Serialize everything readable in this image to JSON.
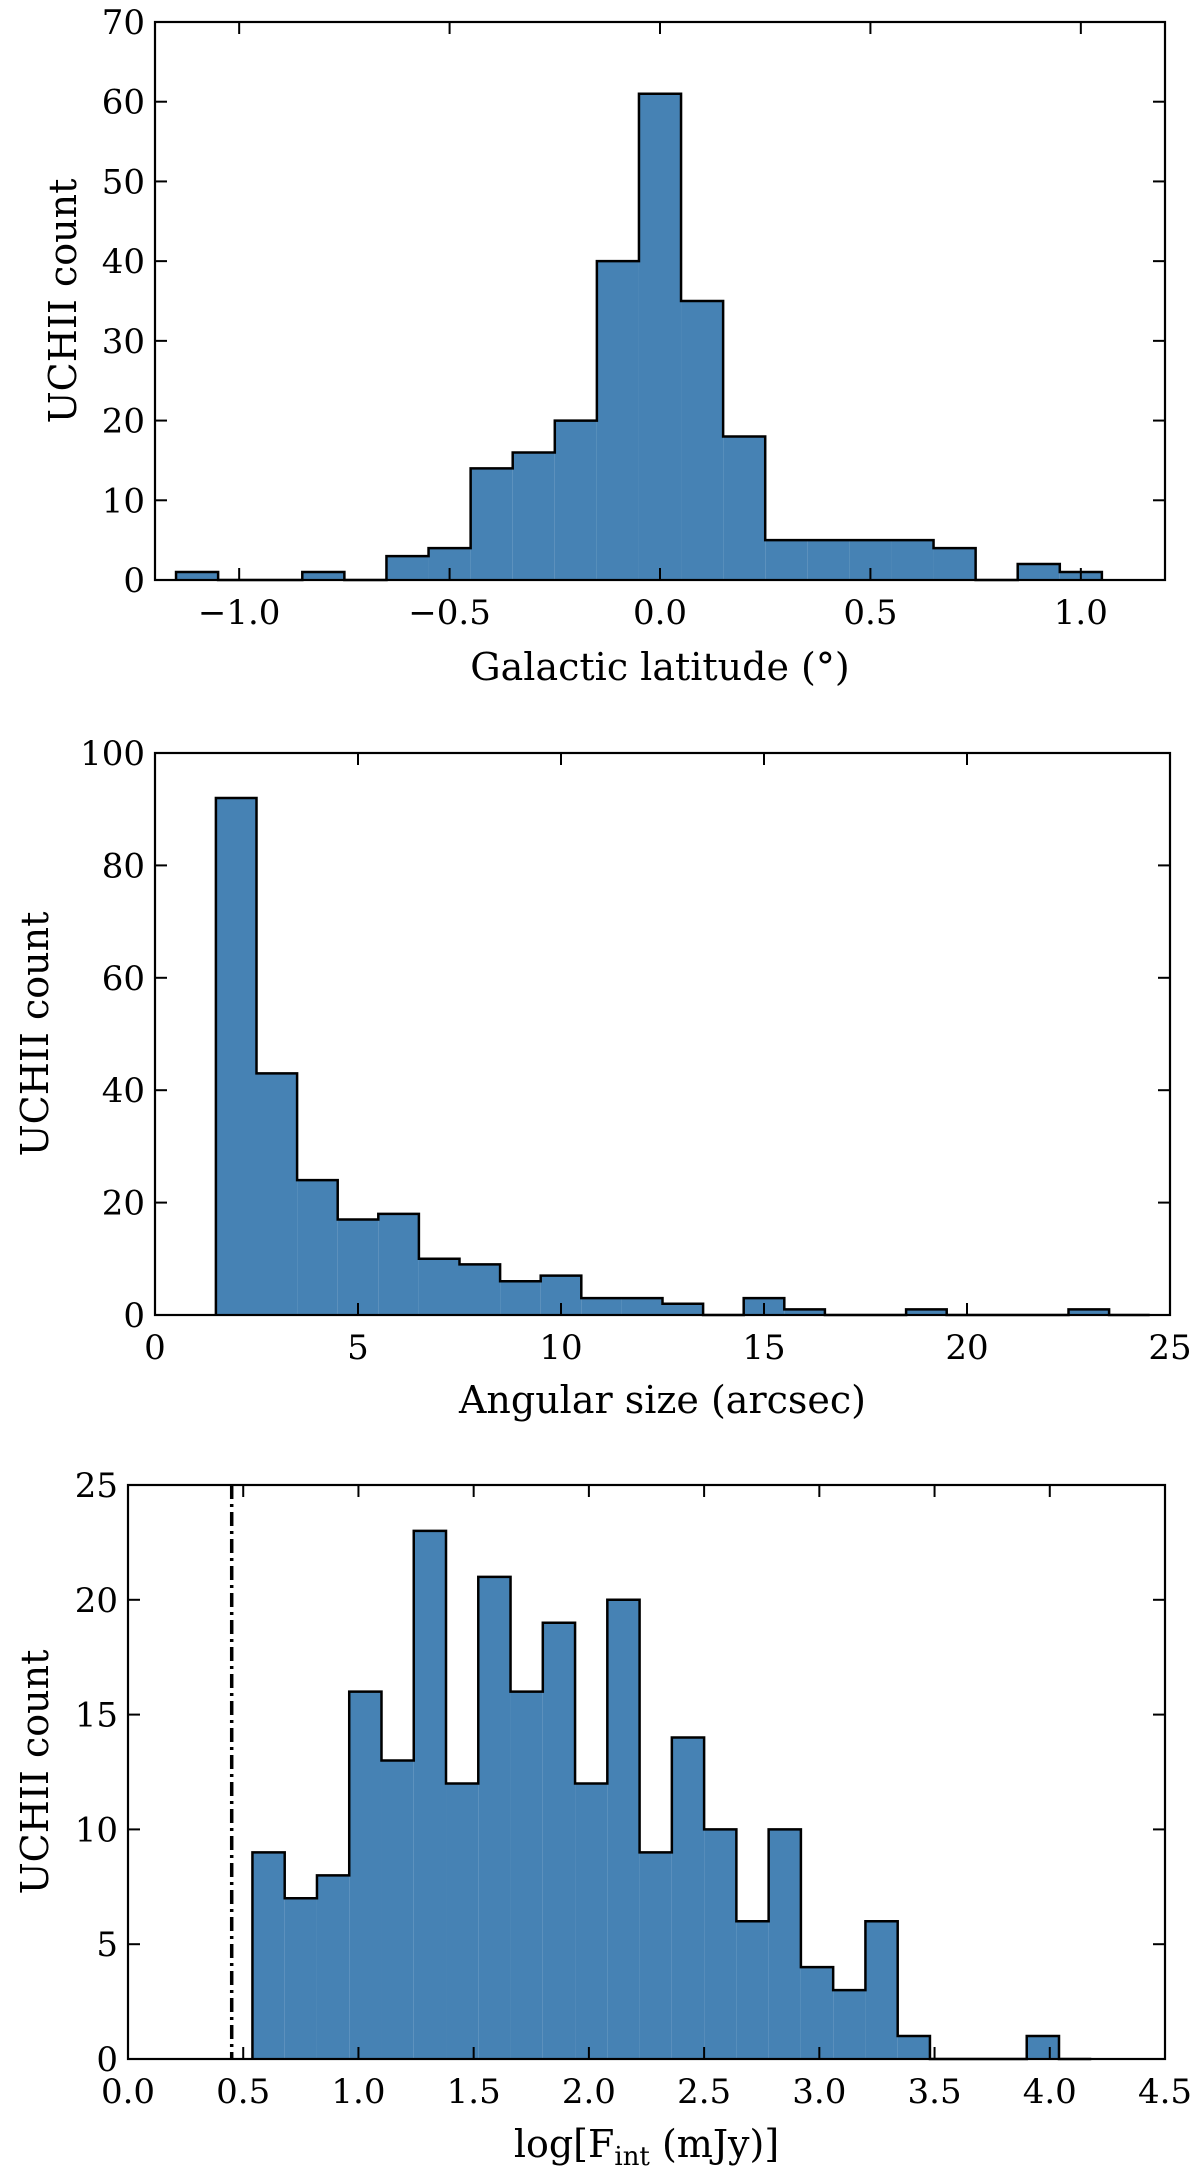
{
  "chart_data": [
    {
      "type": "bar",
      "title": "",
      "xlabel": "Galactic latitude (°)",
      "ylabel": "UCHII count",
      "xlim": [
        -1.2,
        1.2
      ],
      "ylim": [
        0,
        70
      ],
      "xticks": [
        -1.0,
        -0.5,
        0.0,
        0.5,
        1.0
      ],
      "xtick_labels": [
        "−1.0",
        "−0.5",
        "0.0",
        "0.5",
        "1.0"
      ],
      "yticks": [
        0,
        10,
        20,
        30,
        40,
        50,
        60,
        70
      ],
      "ytick_labels": [
        "0",
        "10",
        "20",
        "30",
        "40",
        "50",
        "60",
        "70"
      ],
      "bin_edges": [
        -1.15,
        -1.05,
        -0.95,
        -0.85,
        -0.75,
        -0.65,
        -0.55,
        -0.45,
        -0.35,
        -0.25,
        -0.15,
        -0.05,
        0.05,
        0.15,
        0.25,
        0.35,
        0.45,
        0.55,
        0.65,
        0.75,
        0.85,
        0.95,
        1.05
      ],
      "values": [
        1,
        0,
        0,
        1,
        0,
        3,
        4,
        14,
        16,
        20,
        40,
        61,
        35,
        18,
        5,
        5,
        5,
        5,
        4,
        0,
        2,
        1
      ],
      "color": "#4682b4"
    },
    {
      "type": "bar",
      "title": "",
      "xlabel": "Angular size (arcsec)",
      "ylabel": "UCHII count",
      "xlim": [
        0,
        25
      ],
      "ylim": [
        0,
        100
      ],
      "xticks": [
        0,
        5,
        10,
        15,
        20,
        25
      ],
      "xtick_labels": [
        "0",
        "5",
        "10",
        "15",
        "20",
        "25"
      ],
      "yticks": [
        0,
        20,
        40,
        60,
        80,
        100
      ],
      "ytick_labels": [
        "0",
        "20",
        "40",
        "60",
        "80",
        "100"
      ],
      "bin_edges": [
        1.5,
        2.5,
        3.5,
        4.5,
        5.5,
        6.5,
        7.5,
        8.5,
        9.5,
        10.5,
        11.5,
        12.5,
        13.5,
        14.5,
        15.5,
        16.5,
        17.5,
        18.5,
        19.5,
        20.5,
        21.5,
        22.5,
        23.5,
        24.5
      ],
      "values": [
        92,
        43,
        24,
        17,
        18,
        10,
        9,
        6,
        7,
        3,
        3,
        2,
        0,
        3,
        1,
        0,
        0,
        1,
        0,
        0,
        0,
        1,
        0
      ],
      "color": "#4682b4"
    },
    {
      "type": "bar",
      "title": "",
      "xlabel_main": "log[F",
      "xlabel_sub": "int",
      "xlabel_tail": " (mJy)]",
      "ylabel": "UCHII count",
      "xlim": [
        0.0,
        4.5
      ],
      "ylim": [
        0,
        25
      ],
      "xticks": [
        0.0,
        0.5,
        1.0,
        1.5,
        2.0,
        2.5,
        3.0,
        3.5,
        4.0,
        4.5
      ],
      "xtick_labels": [
        "0.0",
        "0.5",
        "1.0",
        "1.5",
        "2.0",
        "2.5",
        "3.0",
        "3.5",
        "4.0",
        "4.5"
      ],
      "yticks": [
        0,
        5,
        10,
        15,
        20,
        25
      ],
      "ytick_labels": [
        "0",
        "5",
        "10",
        "15",
        "20",
        "25"
      ],
      "bin_edges": [
        0.54,
        0.68,
        0.82,
        0.96,
        1.1,
        1.24,
        1.38,
        1.52,
        1.66,
        1.8,
        1.94,
        2.08,
        2.22,
        2.36,
        2.5,
        2.64,
        2.78,
        2.92,
        3.06,
        3.2,
        3.34,
        3.48,
        3.62,
        3.76,
        3.9,
        4.04,
        4.18
      ],
      "values": [
        9,
        7,
        8,
        16,
        13,
        23,
        12,
        21,
        16,
        19,
        12,
        20,
        9,
        14,
        10,
        6,
        10,
        4,
        3,
        6,
        1,
        0,
        0,
        0,
        1,
        0
      ],
      "vline": 0.45,
      "color": "#4682b4"
    }
  ]
}
